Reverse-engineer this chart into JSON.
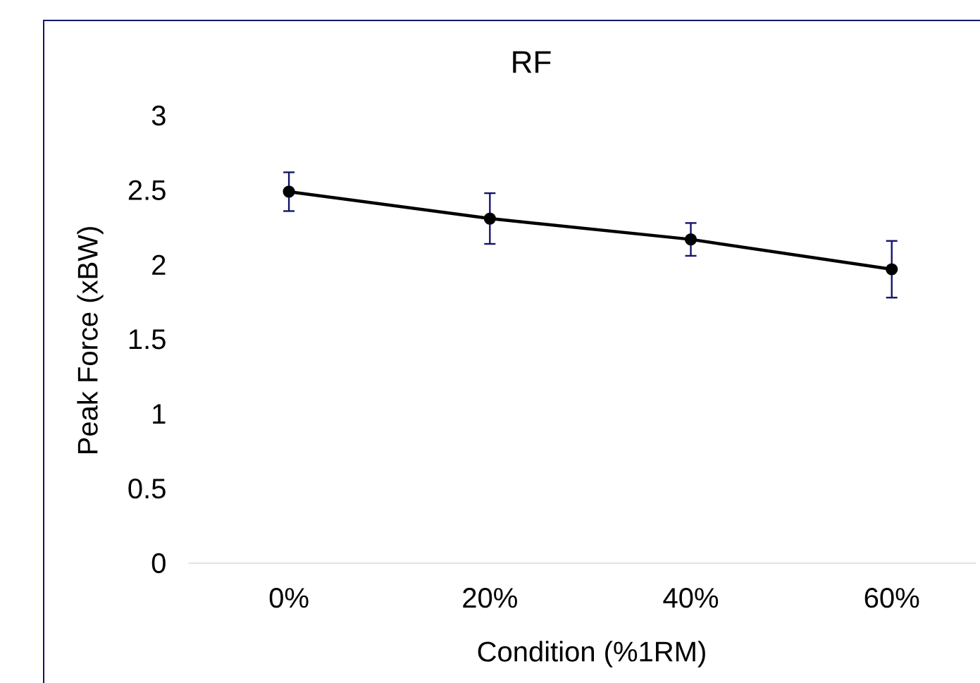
{
  "chart_data": {
    "type": "line",
    "title": "RF",
    "xlabel": "Condition (%1RM)",
    "ylabel": "Peak Force (xBW)",
    "categories": [
      "0%",
      "20%",
      "40%",
      "60%"
    ],
    "series": [
      {
        "color": "#000000",
        "values": [
          2.49,
          2.31,
          2.17,
          1.97
        ],
        "errors": [
          0.13,
          0.17,
          0.11,
          0.19
        ]
      }
    ],
    "ylim": [
      0,
      3
    ],
    "yticks": [
      0,
      0.5,
      1,
      1.5,
      2,
      2.5,
      3
    ],
    "marker": "circle",
    "line_style": "solid"
  }
}
